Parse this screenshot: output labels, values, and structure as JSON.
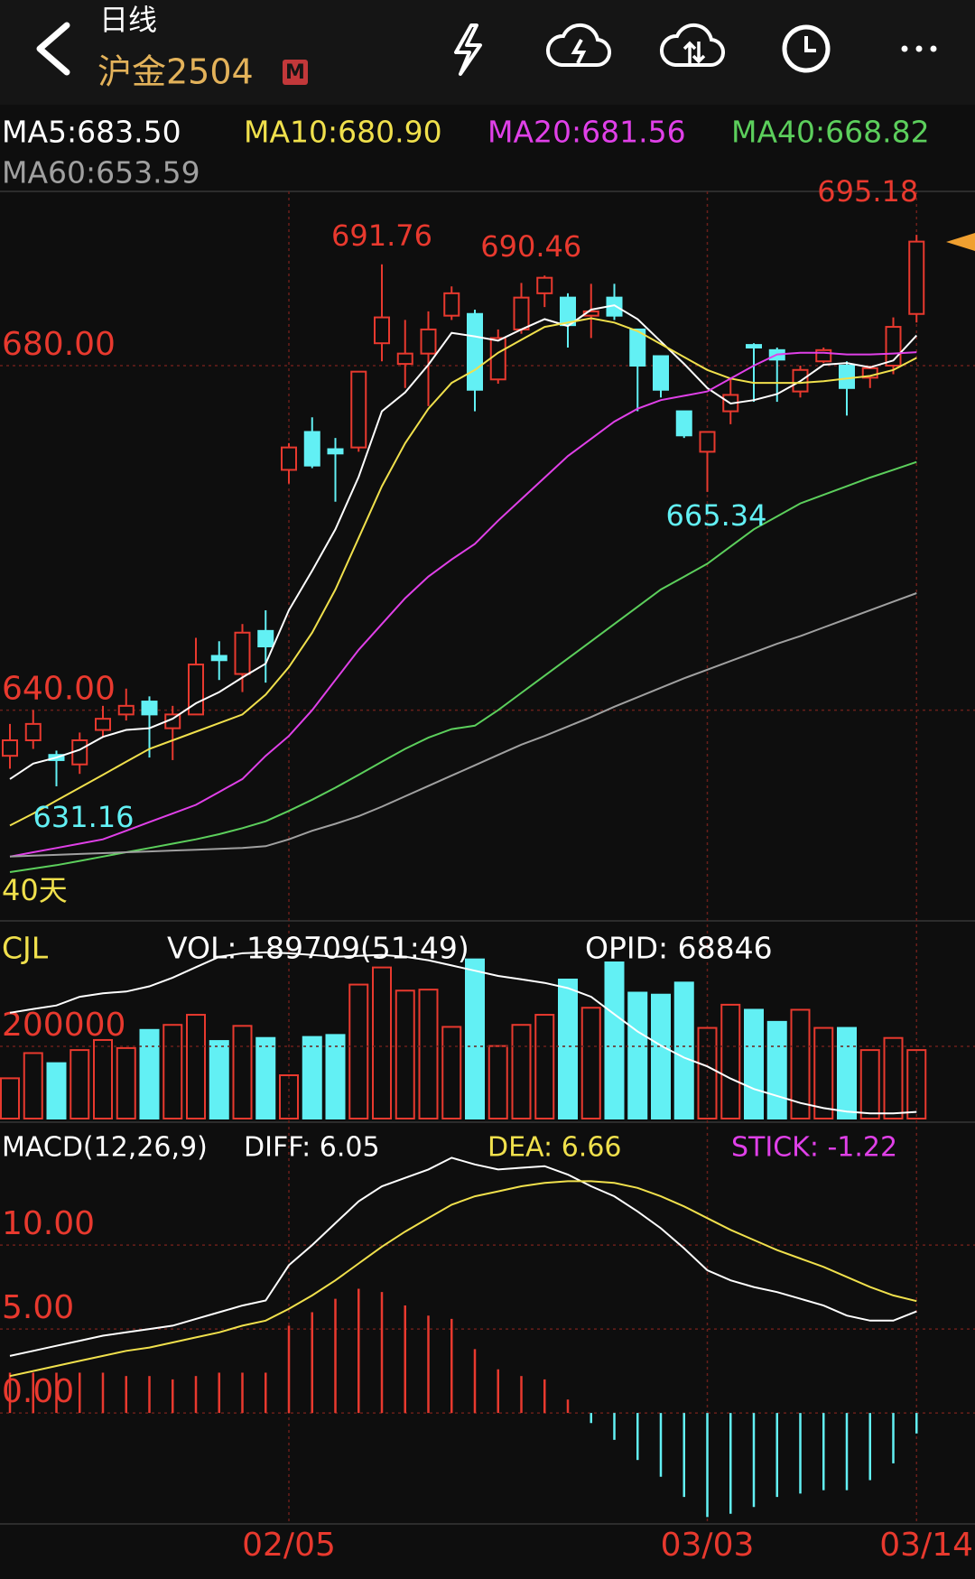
{
  "header": {
    "title": "日线",
    "symbol": "沪金2504",
    "badge": "M"
  },
  "chart_data": [
    {
      "type": "candlestick",
      "annotation": "40天",
      "up_color": "#e8392e",
      "down_color": "#62f0f4",
      "open": [
        634.7,
        636.5,
        634.8,
        633.7,
        637.7,
        639.5,
        641,
        637.9,
        639.5,
        646.3,
        644.2,
        649.2,
        667.9,
        672.3,
        670.3,
        670.5,
        682.6,
        680.2,
        681.4,
        685.8,
        686,
        678.4,
        684.2,
        688.4,
        687.9,
        685.8,
        687.9,
        684.2,
        681.1,
        674.7,
        670,
        674.7,
        682.4,
        681.8,
        677,
        680.5,
        680,
        678.6,
        680,
        686
      ],
      "high": [
        638.4,
        640,
        635.3,
        637.4,
        640.5,
        642.5,
        641.6,
        640.5,
        648.4,
        648,
        650,
        651.6,
        671,
        674,
        671.6,
        679.3,
        691.76,
        685.3,
        686.3,
        689.2,
        686.5,
        684.2,
        689.6,
        690.46,
        688.4,
        689.5,
        689.5,
        684.2,
        681.1,
        674.7,
        672.3,
        678.4,
        682.6,
        682.1,
        680,
        682.1,
        680.5,
        680,
        685.6,
        695.18
      ],
      "low": [
        633.2,
        635.5,
        631.16,
        632.6,
        636.8,
        638.8,
        634.5,
        634.2,
        639.5,
        643.5,
        642.1,
        643.2,
        666.3,
        668.1,
        664.2,
        670,
        680.5,
        677.4,
        675.3,
        685.3,
        674.7,
        677.9,
        683.7,
        686.8,
        682.1,
        683.2,
        685.3,
        674.7,
        676.3,
        671.6,
        665.34,
        673.2,
        675.8,
        675.8,
        676.3,
        680.3,
        674.2,
        677.4,
        679,
        685
      ],
      "close": [
        636.5,
        638.4,
        634.2,
        636.5,
        639,
        640.5,
        639.5,
        639.5,
        645.3,
        645.8,
        649,
        647.4,
        670.5,
        668.4,
        669.8,
        679.3,
        685.6,
        681.4,
        684.2,
        688.4,
        677.2,
        683.2,
        687.9,
        690.2,
        684.7,
        686.3,
        685.8,
        680,
        677.2,
        671.9,
        672.3,
        676.6,
        682.1,
        680.7,
        679.5,
        681.8,
        677.4,
        679.7,
        684.5,
        694.4
      ],
      "series": [
        {
          "name": "MA5:683.50",
          "color": "#ffffff",
          "values": [
            632,
            633.8,
            634.5,
            635.4,
            636.9,
            637.7,
            637.9,
            639,
            640.8,
            642.1,
            643.8,
            645.4,
            651.6,
            656.2,
            661,
            667.1,
            674.7,
            676.9,
            680.1,
            683.8,
            683.4,
            682.9,
            684.2,
            685.4,
            684.6,
            686.5,
            687,
            685.4,
            682.8,
            680.2,
            677.4,
            675.6,
            676,
            676.7,
            678.2,
            680.1,
            680.3,
            679.8,
            680.6,
            683.5
          ]
        },
        {
          "name": "MA10:680.90",
          "color": "#f0e04c",
          "values": [
            626.6,
            628,
            629.5,
            631,
            632.5,
            634,
            635.5,
            636.5,
            637.5,
            638.5,
            639.5,
            641.8,
            645,
            649,
            654,
            660,
            666,
            671,
            675,
            678,
            679.5,
            681.5,
            683,
            684.5,
            685,
            685.5,
            685,
            684,
            682.5,
            681,
            679.5,
            678.5,
            678,
            678,
            678,
            678.2,
            678.5,
            678.8,
            679.5,
            680.9
          ]
        },
        {
          "name": "MA20:681.56",
          "color": "#e040e8",
          "values": [
            623,
            623.5,
            624,
            624.5,
            625,
            626,
            627,
            628,
            629,
            630.5,
            632,
            634.7,
            637,
            640,
            643.5,
            647,
            650,
            653,
            655.5,
            657.5,
            659.3,
            662,
            664.5,
            667,
            669.5,
            671.5,
            673.5,
            675,
            676,
            676.5,
            677,
            678.5,
            680,
            681.3,
            681.5,
            681.5,
            681.3,
            681.3,
            681.4,
            681.56
          ]
        },
        {
          "name": "MA40:668.82",
          "color": "#5ccf5c",
          "values": [
            621.2,
            621.6,
            622,
            622.5,
            623,
            623.5,
            624,
            624.5,
            625,
            625.6,
            626.3,
            627.1,
            628.3,
            629.6,
            631,
            632.5,
            634,
            635.5,
            636.8,
            637.8,
            638.2,
            640,
            642,
            644,
            646,
            648,
            650,
            652,
            654,
            655.5,
            657,
            659,
            661,
            662.5,
            664,
            665,
            666,
            667,
            667.9,
            668.82
          ]
        },
        {
          "name": "MA60:653.59",
          "color": "#a0a0a0",
          "values": [
            623,
            623.1,
            623.2,
            623.3,
            623.4,
            623.5,
            623.6,
            623.7,
            623.8,
            623.9,
            624,
            624.2,
            625,
            626,
            626.8,
            627.7,
            628.8,
            630,
            631.2,
            632.4,
            633.6,
            634.8,
            636,
            637,
            638.1,
            639.2,
            640.4,
            641.5,
            642.6,
            643.7,
            644.7,
            645.7,
            646.7,
            647.7,
            648.6,
            649.6,
            650.6,
            651.6,
            652.6,
            653.59
          ]
        }
      ],
      "ylim": [
        616.06,
        700.23
      ],
      "yticks": [
        {
          "value": 640,
          "label": "640.00"
        },
        {
          "value": 680,
          "label": "680.00"
        }
      ],
      "grid": true
    },
    {
      "type": "bar",
      "title": "CJL",
      "label": "VOL: 189709(51:49)",
      "values": [
        111600,
        181350,
        153450,
        189720,
        217620,
        195300,
        245520,
        259470,
        287370,
        214830,
        256680,
        223200,
        119970,
        225990,
        231570,
        371070,
        418500,
        354330,
        357120,
        253890,
        440820,
        200880,
        259470,
        287370,
        385020,
        306900,
        432450,
        348750,
        343170,
        376650,
        251100,
        315270,
        301320,
        267840,
        301320,
        251100,
        251100,
        189720,
        223200,
        189709
      ],
      "ylim": [
        0,
        530000
      ],
      "yticks": [
        200000
      ],
      "y2lim": [
        65000,
        175000
      ],
      "series": [
        {
          "name": "OPID: 68846",
          "color": "#ffffff",
          "axis": "y2",
          "values": [
            125800,
            128000,
            130000,
            135000,
            137000,
            138000,
            141000,
            146000,
            152000,
            158000,
            160000,
            160500,
            160000,
            159000,
            158000,
            158500,
            159000,
            158000,
            156000,
            153000,
            150000,
            147000,
            145000,
            143000,
            140000,
            135000,
            125000,
            115000,
            107000,
            100000,
            95000,
            88000,
            82000,
            78000,
            74000,
            71000,
            69000,
            68000,
            68000,
            68846
          ]
        }
      ]
    },
    {
      "type": "line",
      "title": "MACD(12,26,9)",
      "up_color": "#e8392e",
      "down_color": "#62f0f4",
      "categories": [
        null,
        null,
        null,
        null,
        null,
        null,
        null,
        null,
        null,
        null,
        null,
        null,
        "02/05",
        null,
        null,
        null,
        null,
        null,
        null,
        null,
        null,
        null,
        null,
        null,
        null,
        null,
        null,
        null,
        null,
        null,
        "03/03",
        null,
        null,
        null,
        null,
        null,
        null,
        null,
        null,
        "03/14"
      ],
      "series": [
        {
          "name": "DIFF: 6.05",
          "color": "#ffffff",
          "values": [
            3.4,
            3.7,
            4.0,
            4.3,
            4.6,
            4.8,
            5.0,
            5.2,
            5.6,
            6.0,
            6.4,
            6.7,
            8.8,
            10.0,
            11.3,
            12.6,
            13.5,
            14.0,
            14.5,
            15.2,
            14.8,
            14.5,
            14.6,
            14.7,
            14.2,
            13.5,
            12.9,
            12.0,
            11.0,
            9.8,
            8.5,
            7.9,
            7.5,
            7.2,
            6.8,
            6.4,
            5.8,
            5.5,
            5.5,
            6.05
          ]
        },
        {
          "name": "DEA: 6.66",
          "color": "#f0e04c",
          "values": [
            2.2,
            2.5,
            2.8,
            3.1,
            3.4,
            3.7,
            3.9,
            4.2,
            4.5,
            4.8,
            5.2,
            5.5,
            6.2,
            7.0,
            7.9,
            8.9,
            9.9,
            10.8,
            11.6,
            12.4,
            12.9,
            13.2,
            13.5,
            13.7,
            13.8,
            13.8,
            13.7,
            13.4,
            12.9,
            12.3,
            11.6,
            10.9,
            10.3,
            9.7,
            9.2,
            8.7,
            8.1,
            7.5,
            7.0,
            6.66
          ]
        },
        {
          "name": "STICK: -1.22",
          "color": "#e040e8",
          "type": "bar",
          "values": [
            2.4,
            2.4,
            2.4,
            2.4,
            2.4,
            2.2,
            2.2,
            2.0,
            2.2,
            2.4,
            2.4,
            2.4,
            5.2,
            6.0,
            6.8,
            7.4,
            7.2,
            6.4,
            5.8,
            5.6,
            3.8,
            2.6,
            2.2,
            2.0,
            0.8,
            -0.6,
            -1.6,
            -2.8,
            -3.8,
            -5.0,
            -6.2,
            -6.0,
            -5.6,
            -5.0,
            -4.8,
            -4.6,
            -4.6,
            -4.0,
            -3.0,
            -1.22
          ]
        }
      ],
      "ylim": [
        -6.5,
        16.94
      ],
      "yticks": [
        {
          "value": 0,
          "label": "0.00"
        },
        {
          "value": 5,
          "label": "5.00"
        },
        {
          "value": 10,
          "label": "10.00"
        }
      ],
      "grid": true
    }
  ]
}
